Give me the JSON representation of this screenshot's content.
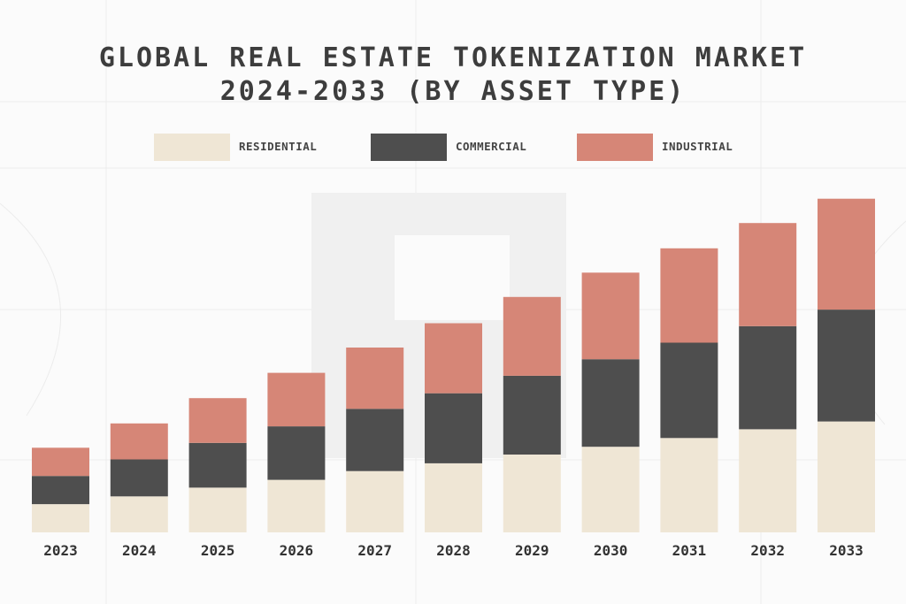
{
  "colors": {
    "residential": "#efe6d5",
    "commercial": "#4e4e4e",
    "industrial": "#d68677"
  },
  "chart_data": {
    "type": "bar",
    "stacked": true,
    "title_lines": [
      "GLOBAL REAL ESTATE TOKENIZATION MARKET",
      "2024-2033 (BY ASSET TYPE)"
    ],
    "legend_position": "top",
    "grid": false,
    "categories": [
      "2023",
      "2024",
      "2025",
      "2026",
      "2027",
      "2028",
      "2029",
      "2030",
      "2031",
      "2032",
      "2033"
    ],
    "series": [
      {
        "name": "RESIDENTIAL",
        "color": "#efe6d5",
        "values": [
          29,
          37,
          46,
          54,
          63,
          71,
          80,
          88,
          97,
          106,
          114
        ]
      },
      {
        "name": "COMMERCIAL",
        "color": "#4e4e4e",
        "values": [
          29,
          38,
          46,
          55,
          64,
          72,
          81,
          90,
          98,
          106,
          115
        ]
      },
      {
        "name": "INDUSTRIAL",
        "color": "#d68677",
        "values": [
          29,
          37,
          46,
          55,
          63,
          72,
          81,
          89,
          97,
          106,
          114
        ]
      }
    ],
    "ylim": [
      0,
      360
    ]
  }
}
